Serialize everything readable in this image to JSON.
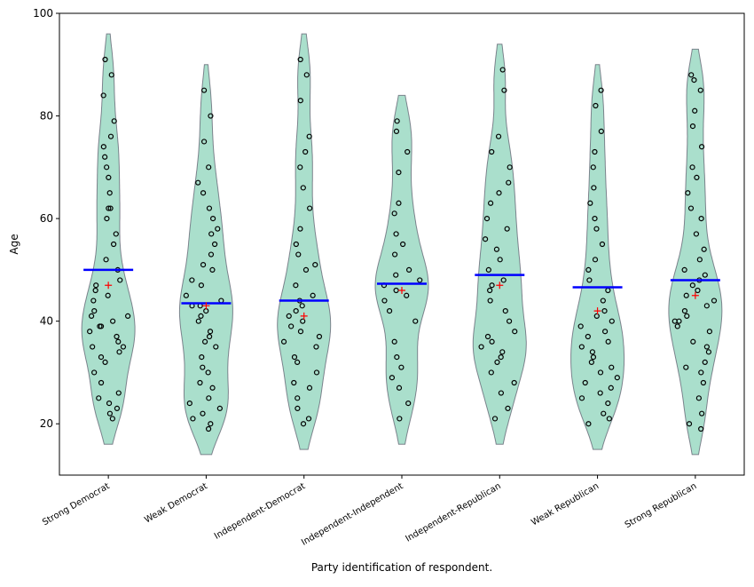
{
  "chart_data": {
    "type": "violin",
    "x_label": "Party identification of respondent.",
    "y_label": "Age",
    "categories": [
      "Strong Democrat",
      "Weak Democrat",
      "Independent-Democrat",
      "Independent-Independent",
      "Independent-Republican",
      "Weak Republican",
      "Strong Republican"
    ],
    "points": [
      [
        21,
        22,
        23,
        24,
        25,
        26,
        28,
        30,
        32,
        33,
        34,
        35,
        35,
        36,
        37,
        38,
        39,
        39,
        40,
        41,
        41,
        42,
        44,
        45,
        46,
        47,
        48,
        50,
        52,
        55,
        57,
        60,
        62,
        62,
        65,
        68,
        70,
        72,
        74,
        76,
        79,
        84,
        88,
        91
      ],
      [
        19,
        20,
        21,
        22,
        23,
        24,
        25,
        27,
        28,
        30,
        31,
        33,
        35,
        36,
        37,
        38,
        40,
        41,
        42,
        43,
        43,
        44,
        45,
        47,
        48,
        50,
        51,
        53,
        55,
        57,
        58,
        60,
        62,
        65,
        67,
        70,
        75,
        80,
        85
      ],
      [
        20,
        21,
        23,
        25,
        27,
        28,
        30,
        32,
        33,
        35,
        36,
        37,
        38,
        39,
        40,
        41,
        42,
        43,
        44,
        45,
        47,
        50,
        51,
        53,
        55,
        58,
        62,
        66,
        70,
        73,
        76,
        83,
        88,
        91
      ],
      [
        21,
        24,
        27,
        29,
        31,
        33,
        36,
        40,
        42,
        44,
        45,
        46,
        47,
        48,
        49,
        50,
        53,
        55,
        57,
        61,
        63,
        69,
        73,
        77,
        79
      ],
      [
        21,
        23,
        26,
        28,
        30,
        32,
        33,
        34,
        35,
        36,
        37,
        38,
        40,
        42,
        44,
        46,
        47,
        48,
        50,
        52,
        54,
        56,
        58,
        60,
        63,
        65,
        67,
        70,
        73,
        76,
        85,
        89
      ],
      [
        20,
        21,
        22,
        24,
        25,
        26,
        27,
        28,
        29,
        30,
        31,
        32,
        33,
        34,
        35,
        36,
        37,
        38,
        39,
        40,
        41,
        42,
        44,
        46,
        48,
        50,
        52,
        55,
        58,
        60,
        63,
        66,
        70,
        73,
        77,
        82,
        85
      ],
      [
        19,
        20,
        22,
        25,
        28,
        30,
        31,
        32,
        34,
        35,
        36,
        38,
        39,
        40,
        40,
        41,
        42,
        43,
        44,
        45,
        46,
        47,
        48,
        49,
        50,
        52,
        54,
        57,
        60,
        62,
        65,
        68,
        70,
        74,
        78,
        81,
        85,
        87,
        88
      ]
    ],
    "means": [
      50,
      43.5,
      44,
      47.3,
      49,
      46.6,
      48
    ],
    "medians": [
      47,
      43,
      41,
      46,
      47,
      42,
      45
    ],
    "violin_color": "#aadfcc",
    "mean_color": "#0000ff",
    "median_color": "#ff0000",
    "ylim": [
      10,
      100
    ],
    "yticks": [
      20,
      40,
      60,
      80,
      100
    ]
  }
}
